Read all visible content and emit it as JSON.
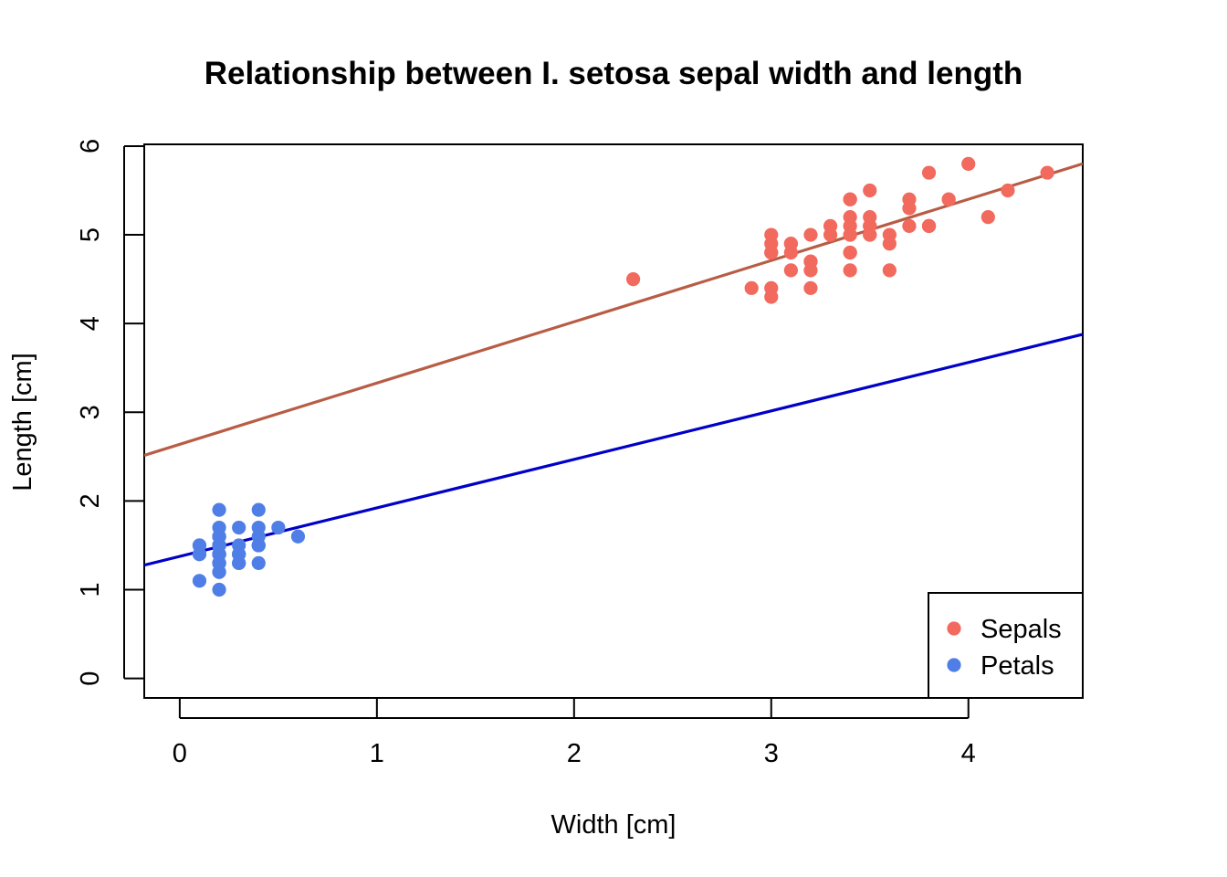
{
  "chart_data": {
    "type": "scatter",
    "title": "Relationship between I. setosa sepal width and length",
    "xlabel": "Width [cm]",
    "ylabel": "Length [cm]",
    "xlim": [
      -0.18,
      4.58
    ],
    "ylim": [
      -0.22,
      6.02
    ],
    "xticks": [
      "0",
      "1",
      "2",
      "3",
      "4"
    ],
    "yticks": [
      "0",
      "1",
      "2",
      "3",
      "4",
      "5",
      "6"
    ],
    "grid": false,
    "legend_position": "bottom-right",
    "series": [
      {
        "name": "Sepals",
        "color": "#F2695E",
        "points": [
          [
            3.5,
            5.1
          ],
          [
            3.0,
            4.9
          ],
          [
            3.2,
            4.7
          ],
          [
            3.1,
            4.6
          ],
          [
            3.6,
            5.0
          ],
          [
            3.9,
            5.4
          ],
          [
            3.4,
            4.6
          ],
          [
            3.4,
            5.0
          ],
          [
            2.9,
            4.4
          ],
          [
            3.1,
            4.9
          ],
          [
            3.7,
            5.4
          ],
          [
            3.4,
            4.8
          ],
          [
            3.0,
            4.8
          ],
          [
            3.0,
            4.3
          ],
          [
            4.0,
            5.8
          ],
          [
            4.4,
            5.7
          ],
          [
            3.9,
            5.4
          ],
          [
            3.5,
            5.1
          ],
          [
            3.8,
            5.7
          ],
          [
            3.8,
            5.1
          ],
          [
            3.4,
            5.4
          ],
          [
            3.7,
            5.1
          ],
          [
            3.6,
            4.6
          ],
          [
            3.3,
            5.1
          ],
          [
            3.4,
            4.8
          ],
          [
            3.0,
            5.0
          ],
          [
            3.4,
            5.0
          ],
          [
            3.5,
            5.2
          ],
          [
            3.4,
            5.2
          ],
          [
            3.2,
            4.7
          ],
          [
            3.1,
            4.8
          ],
          [
            3.4,
            5.4
          ],
          [
            4.1,
            5.2
          ],
          [
            4.2,
            5.5
          ],
          [
            3.1,
            4.9
          ],
          [
            3.2,
            5.0
          ],
          [
            3.5,
            5.5
          ],
          [
            3.6,
            4.9
          ],
          [
            3.0,
            4.4
          ],
          [
            3.4,
            5.1
          ],
          [
            3.5,
            5.0
          ],
          [
            2.3,
            4.5
          ],
          [
            3.2,
            4.4
          ],
          [
            3.5,
            5.0
          ],
          [
            3.8,
            5.1
          ],
          [
            3.0,
            4.8
          ],
          [
            3.8,
            5.1
          ],
          [
            3.2,
            4.6
          ],
          [
            3.7,
            5.3
          ],
          [
            3.3,
            5.0
          ]
        ],
        "trend": {
          "intercept": 2.639,
          "slope": 0.6905,
          "color": "#B85D45"
        }
      },
      {
        "name": "Petals",
        "color": "#4F7FE6",
        "points": [
          [
            0.2,
            1.4
          ],
          [
            0.2,
            1.4
          ],
          [
            0.2,
            1.3
          ],
          [
            0.2,
            1.5
          ],
          [
            0.2,
            1.4
          ],
          [
            0.4,
            1.7
          ],
          [
            0.3,
            1.4
          ],
          [
            0.2,
            1.5
          ],
          [
            0.2,
            1.4
          ],
          [
            0.1,
            1.5
          ],
          [
            0.2,
            1.5
          ],
          [
            0.2,
            1.6
          ],
          [
            0.1,
            1.4
          ],
          [
            0.1,
            1.1
          ],
          [
            0.2,
            1.2
          ],
          [
            0.4,
            1.5
          ],
          [
            0.4,
            1.3
          ],
          [
            0.3,
            1.4
          ],
          [
            0.3,
            1.7
          ],
          [
            0.3,
            1.5
          ],
          [
            0.2,
            1.7
          ],
          [
            0.4,
            1.5
          ],
          [
            0.2,
            1.0
          ],
          [
            0.5,
            1.7
          ],
          [
            0.2,
            1.9
          ],
          [
            0.2,
            1.6
          ],
          [
            0.4,
            1.6
          ],
          [
            0.2,
            1.5
          ],
          [
            0.2,
            1.4
          ],
          [
            0.2,
            1.6
          ],
          [
            0.2,
            1.6
          ],
          [
            0.4,
            1.5
          ],
          [
            0.1,
            1.5
          ],
          [
            0.2,
            1.4
          ],
          [
            0.2,
            1.5
          ],
          [
            0.2,
            1.2
          ],
          [
            0.2,
            1.3
          ],
          [
            0.1,
            1.4
          ],
          [
            0.2,
            1.3
          ],
          [
            0.2,
            1.5
          ],
          [
            0.3,
            1.3
          ],
          [
            0.3,
            1.3
          ],
          [
            0.2,
            1.3
          ],
          [
            0.6,
            1.6
          ],
          [
            0.4,
            1.9
          ],
          [
            0.3,
            1.4
          ],
          [
            0.2,
            1.6
          ],
          [
            0.2,
            1.4
          ],
          [
            0.2,
            1.5
          ],
          [
            0.2,
            1.4
          ]
        ],
        "trend": {
          "intercept": 1.3757,
          "slope": 0.5465,
          "color": "#0000C8"
        }
      }
    ]
  }
}
